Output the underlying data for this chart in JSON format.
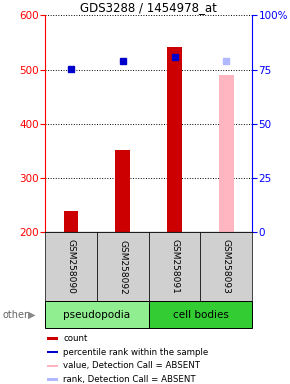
{
  "title": "GDS3288 / 1454978_at",
  "samples": [
    "GSM258090",
    "GSM258092",
    "GSM258091",
    "GSM258093"
  ],
  "bar_colors": [
    "#cc0000",
    "#cc0000",
    "#cc0000",
    "#ffb6c1"
  ],
  "bar_values": [
    240,
    352,
    542,
    490
  ],
  "rank_colors": [
    "#0000cc",
    "#0000cc",
    "#0000cc",
    "#b0b8ff"
  ],
  "rank_values": [
    75.5,
    79,
    81,
    79
  ],
  "ylim_left": [
    200,
    600
  ],
  "ylim_right": [
    0,
    100
  ],
  "yticks_left": [
    200,
    300,
    400,
    500,
    600
  ],
  "yticks_right": [
    0,
    25,
    50,
    75,
    100
  ],
  "yticklabels_right": [
    "0",
    "25",
    "50",
    "75",
    "100%"
  ],
  "legend_items": [
    {
      "color": "#cc0000",
      "label": "count"
    },
    {
      "color": "#0000cc",
      "label": "percentile rank within the sample"
    },
    {
      "color": "#ffb6c1",
      "label": "value, Detection Call = ABSENT"
    },
    {
      "color": "#b0b8ff",
      "label": "rank, Detection Call = ABSENT"
    }
  ],
  "group_spans": [
    {
      "label": "pseudopodia",
      "start": 0,
      "end": 2,
      "color": "#90ee90"
    },
    {
      "label": "cell bodies",
      "start": 2,
      "end": 4,
      "color": "#33cc33"
    }
  ],
  "bg_color": "#d0d0d0",
  "bar_width": 0.28,
  "marker_size": 5
}
